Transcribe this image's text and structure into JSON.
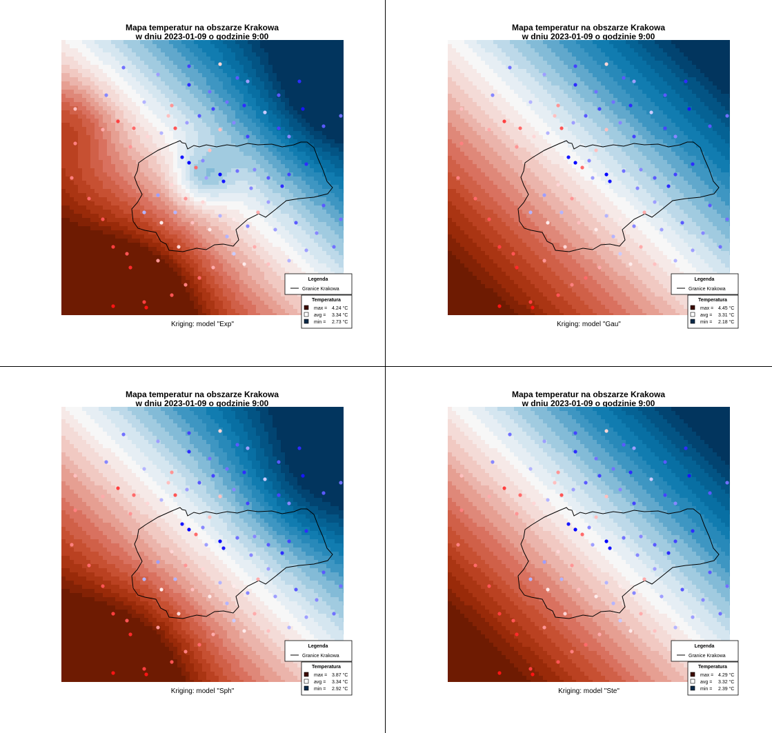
{
  "panels": [
    {
      "title_line1": "Mapa temperatur na obszarze Krakowa",
      "title_line2": "w dniu 2023-01-09 o godzinie 9:00",
      "subtitle": "Kriging: model \"Exp\"",
      "legend": {
        "title": "Legenda",
        "boundary_label": "Granice Krakowa",
        "temp_title": "Temperatura",
        "max_label": "max =",
        "max_value": "4.24 °C",
        "avg_label": "avg =",
        "avg_value": "3.34 °C",
        "min_label": "min =",
        "min_value": "2.73 °C"
      }
    },
    {
      "title_line1": "Mapa temperatur na obszarze Krakowa",
      "title_line2": "w dniu 2023-01-09 o godzinie 9:00",
      "subtitle": "Kriging: model \"Gau\"",
      "legend": {
        "title": "Legenda",
        "boundary_label": "Granice Krakowa",
        "temp_title": "Temperatura",
        "max_label": "max =",
        "max_value": "4.45 °C",
        "avg_label": "avg =",
        "avg_value": "3.31 °C",
        "min_label": "min =",
        "min_value": "2.18 °C"
      }
    },
    {
      "title_line1": "Mapa temperatur na obszarze Krakowa",
      "title_line2": "w dniu 2023-01-09 o godzinie 9:00",
      "subtitle": "Kriging: model \"Sph\"",
      "legend": {
        "title": "Legenda",
        "boundary_label": "Granice Krakowa",
        "temp_title": "Temperatura",
        "max_label": "max =",
        "max_value": "3.87 °C",
        "avg_label": "avg =",
        "avg_value": "3.34 °C",
        "min_label": "min =",
        "min_value": "2.92 °C"
      }
    },
    {
      "title_line1": "Mapa temperatur na obszarze Krakowa",
      "title_line2": "w dniu 2023-01-09 o godzinie 9:00",
      "subtitle": "Kriging: model \"Ste\"",
      "legend": {
        "title": "Legenda",
        "boundary_label": "Granice Krakowa",
        "temp_title": "Temperatura",
        "max_label": "max =",
        "max_value": "4.29 °C",
        "avg_label": "avg =",
        "avg_value": "3.32 °C",
        "min_label": "min =",
        "min_value": "2.39 °C"
      }
    }
  ],
  "colors": {
    "max": "#3d0c00",
    "avg": "#ffffff",
    "min": "#0b2a4a",
    "warm_scale": [
      "#f7f7f7",
      "#f4d6d2",
      "#e8a79b",
      "#d9715f",
      "#c44a2a",
      "#a02c0a",
      "#6e1b02"
    ],
    "cool_scale": [
      "#f7f7f7",
      "#cfe3ef",
      "#8fc1da",
      "#3e96c2",
      "#0a78ad",
      "#03598a",
      "#02355e"
    ],
    "boundary": "#000000"
  },
  "chart_data": [
    {
      "type": "heatmap",
      "model": "Exp",
      "max": 4.24,
      "avg": 3.34,
      "min": 2.73
    },
    {
      "type": "heatmap",
      "model": "Gau",
      "max": 4.45,
      "avg": 3.31,
      "min": 2.18
    },
    {
      "type": "heatmap",
      "model": "Sph",
      "max": 3.87,
      "avg": 3.34,
      "min": 2.92
    },
    {
      "type": "heatmap",
      "model": "Ste",
      "max": 4.29,
      "avg": 3.32,
      "min": 2.39
    }
  ]
}
